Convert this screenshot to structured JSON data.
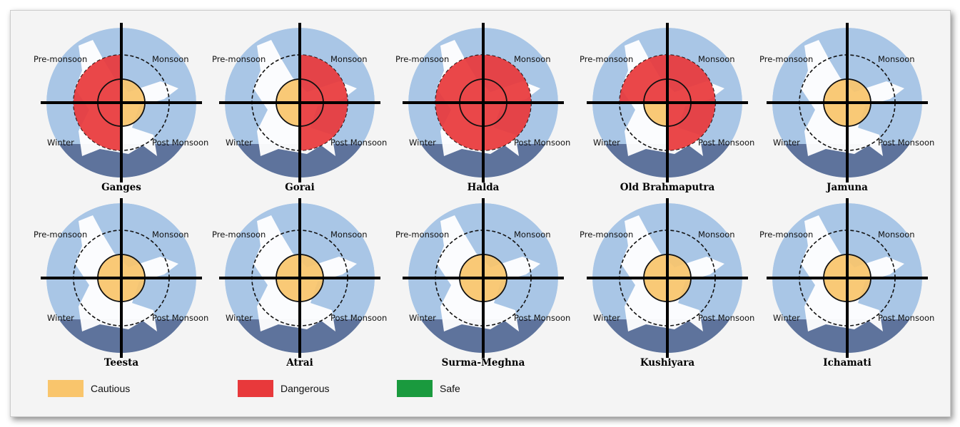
{
  "seasons": {
    "pre": "Pre-monsoon",
    "mon": "Monsoon",
    "post": "Post Monsoon",
    "win": "Winter"
  },
  "colors": {
    "cautious": "#f9c56c",
    "dangerous": "#e8393b",
    "safe": "#1a9a3e",
    "ocean": "#a9c6e6",
    "sea": "#5e739c"
  },
  "legend": [
    {
      "key": "cautious",
      "label": "Cautious"
    },
    {
      "key": "dangerous",
      "label": "Dangerous"
    },
    {
      "key": "safe",
      "label": "Safe"
    }
  ],
  "rivers": [
    {
      "name": "Ganges",
      "status": {
        "pre": "dangerous",
        "mon": "cautious",
        "post": "cautious",
        "win": "dangerous"
      }
    },
    {
      "name": "Gorai",
      "status": {
        "pre": "cautious",
        "mon": "dangerous",
        "post": "dangerous",
        "win": "cautious"
      }
    },
    {
      "name": "Halda",
      "status": {
        "pre": "dangerous",
        "mon": "dangerous",
        "post": "dangerous",
        "win": "dangerous"
      }
    },
    {
      "name": "Old Brahmaputra",
      "status": {
        "pre": "dangerous",
        "mon": "dangerous",
        "post": "dangerous",
        "win": "cautious"
      }
    },
    {
      "name": "Jamuna",
      "status": {
        "pre": "cautious",
        "mon": "cautious",
        "post": "cautious",
        "win": "cautious"
      }
    },
    {
      "name": "Teesta",
      "status": {
        "pre": "cautious",
        "mon": "cautious",
        "post": "cautious",
        "win": "cautious"
      }
    },
    {
      "name": "Atrai",
      "status": {
        "pre": "cautious",
        "mon": "cautious",
        "post": "cautious",
        "win": "cautious"
      }
    },
    {
      "name": "Surma-Meghna",
      "status": {
        "pre": "cautious",
        "mon": "cautious",
        "post": "cautious",
        "win": "cautious"
      }
    },
    {
      "name": "Kushiyara",
      "status": {
        "pre": "cautious",
        "mon": "cautious",
        "post": "cautious",
        "win": "cautious"
      }
    },
    {
      "name": "Ichamati",
      "status": {
        "pre": "cautious",
        "mon": "cautious",
        "post": "cautious",
        "win": "cautious"
      }
    }
  ]
}
